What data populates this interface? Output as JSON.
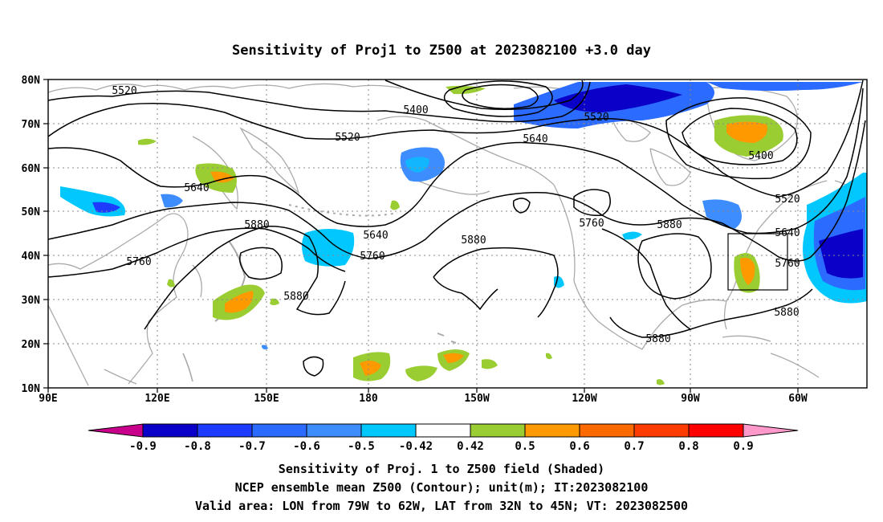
{
  "title": "Sensitivity of Proj1 to Z500 at 2023082100 +3.0 day",
  "lat_labels": [
    "80N",
    "70N",
    "60N",
    "50N",
    "40N",
    "30N",
    "20N",
    "10N"
  ],
  "lon_labels": [
    "90E",
    "120E",
    "150E",
    "180",
    "150W",
    "120W",
    "90W",
    "60W"
  ],
  "contour_labels": [
    "5520",
    "5400",
    "5520",
    "5640",
    "5520",
    "5400",
    "5520",
    "5640",
    "5640",
    "5760",
    "5880",
    "5760",
    "5760",
    "5880",
    "5880",
    "5880",
    "5640",
    "5760",
    "5880",
    "5880"
  ],
  "colorbar": {
    "labels": [
      "-0.9",
      "-0.8",
      "-0.7",
      "-0.6",
      "-0.5",
      "-0.42",
      "0.42",
      "0.5",
      "0.6",
      "0.7",
      "0.8",
      "0.9"
    ],
    "colors": [
      "#0a00c8",
      "#1e3cff",
      "#2b6bff",
      "#3d8dff",
      "#00c8ff",
      "#ffffff",
      "#9acd32",
      "#ff9900",
      "#ff6a00",
      "#ff3c00",
      "#ff0000"
    ],
    "under_color": "#c8008c",
    "over_color": "#ff99cc"
  },
  "caption": [
    "Sensitivity of Proj. 1 to Z500 field (Shaded)",
    "NCEP ensemble mean Z500 (Contour); unit(m); IT:2023082100",
    "Valid area: LON from 79W to 62W, LAT from 32N to 45N; VT: 2023082500"
  ],
  "valid_area": {
    "lon_west": -79,
    "lon_east": -62,
    "lat_south": 32,
    "lat_north": 45
  }
}
